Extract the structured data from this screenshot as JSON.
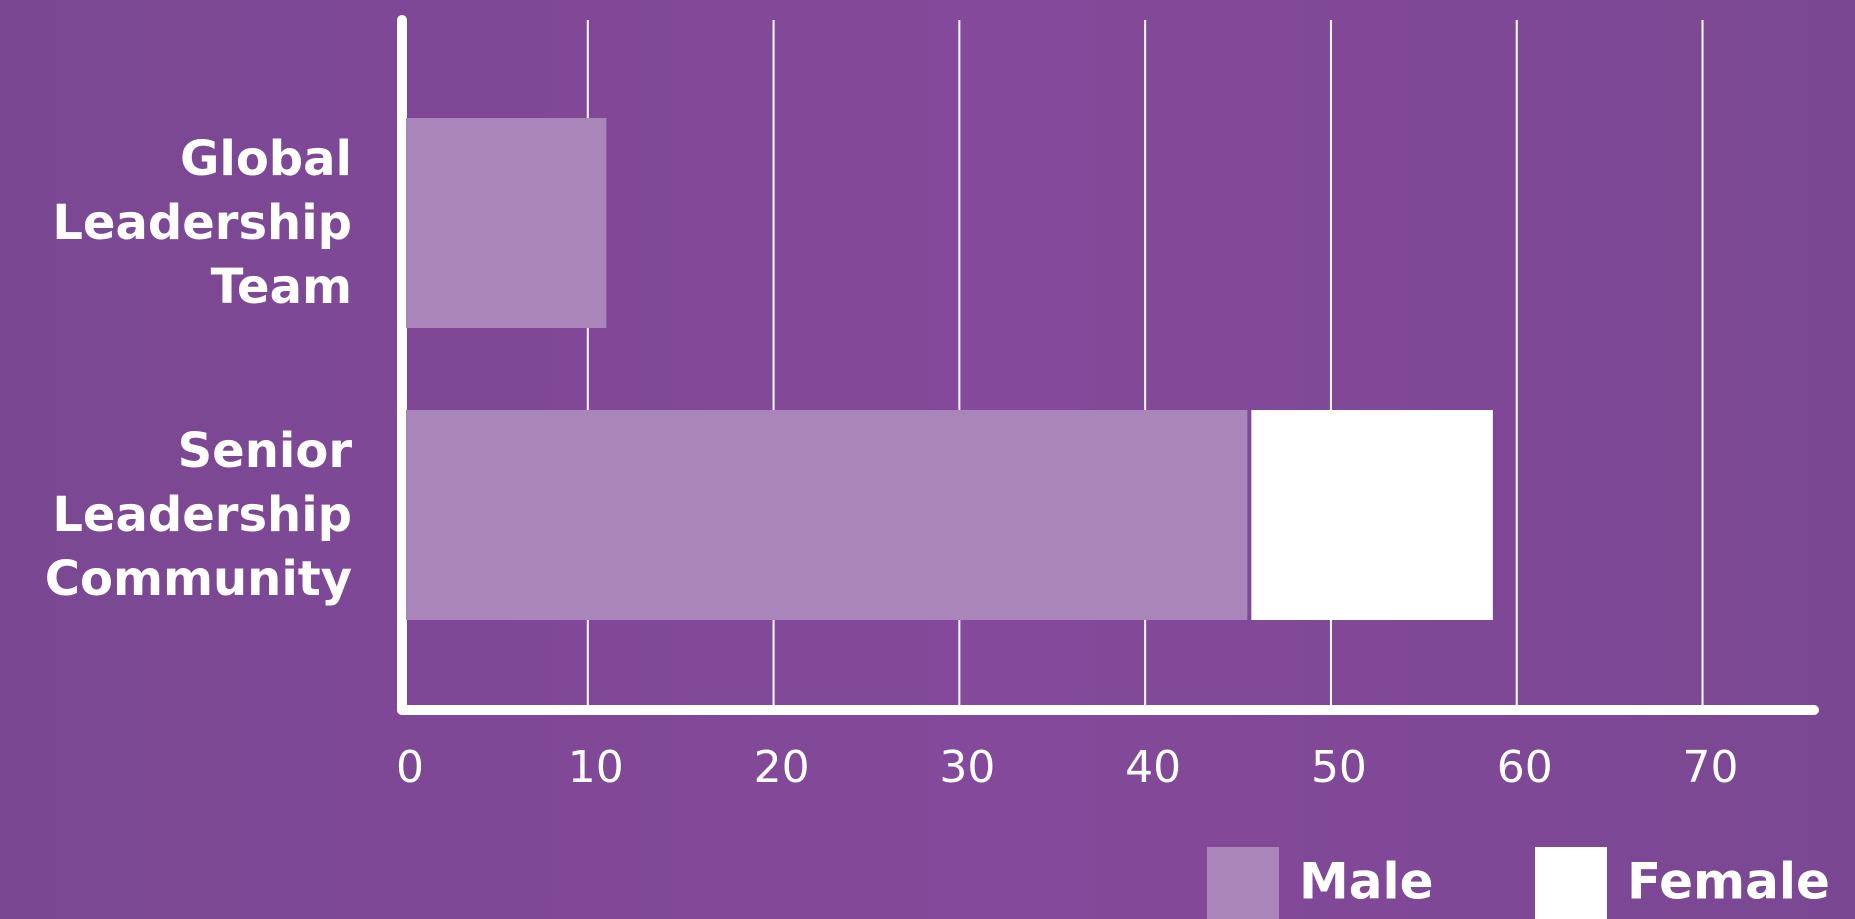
{
  "chart_data": {
    "type": "stacked-barh",
    "categories": [
      "Global Leadership Team",
      "Senior Leadership Community"
    ],
    "series": [
      {
        "name": "Male",
        "color": "#a985ba",
        "values": [
          11,
          45.5
        ]
      },
      {
        "name": "Female",
        "color": "#ffffff",
        "values": [
          0,
          13
        ]
      }
    ],
    "xlim": [
      0,
      76
    ],
    "xticks": [
      0,
      10,
      20,
      30,
      40,
      50,
      60,
      70
    ],
    "grid": true
  }
}
